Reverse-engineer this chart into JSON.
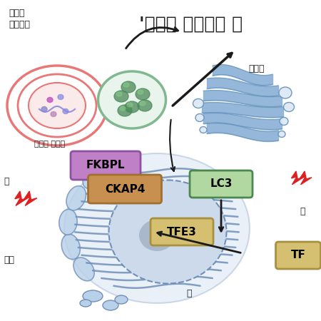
{
  "title": "'소기관 스트레스 극",
  "background_color": "#ffffff",
  "labels": {
    "lysosomes_autophagy_line1": "소포체",
    "lysosomes_autophagy_line2": "자가포식",
    "damaged_vesicle": "손상된 소포체",
    "golgi": "골지체",
    "nucleus_label": "핵",
    "stress_left": "스",
    "er_label": "포체",
    "fkbpl": "FKBPL",
    "ckap4": "CKAP4",
    "lc3": "LC3",
    "tfe3_nucleus": "TFE3",
    "tfe3_cytoplasm": "TF"
  },
  "colors": {
    "er_blue": "#b8d0e8",
    "er_blue_mid": "#9bbad4",
    "er_blue_dark": "#7090b8",
    "golgi_blue": "#8ab0d5",
    "golgi_blue_dark": "#6090b8",
    "nucleus_circle": "#ccdaeb",
    "nucleus_inner": "#aab8cc",
    "lysosome_red_outer": "#e87878",
    "lysosome_inner": "#f5d0d0",
    "lysosome_bg": "#faeaea",
    "autophagosome_green": "#80b890",
    "autophagosome_inner": "#e8f4ec",
    "green_blob": "#4a8858",
    "fkbpl_bg": "#c080c8",
    "fkbpl_border": "#9050a0",
    "ckap4_bg": "#c89050",
    "ckap4_border": "#a07030",
    "lc3_bg": "#b0d8a0",
    "lc3_border": "#4a8850",
    "tfe3_bg": "#d4c070",
    "tfe3_border": "#a89040",
    "arrow_color": "#1a1a1a",
    "lightning_color": "#e02020",
    "text_dark": "#222222",
    "text_medium": "#333333"
  }
}
